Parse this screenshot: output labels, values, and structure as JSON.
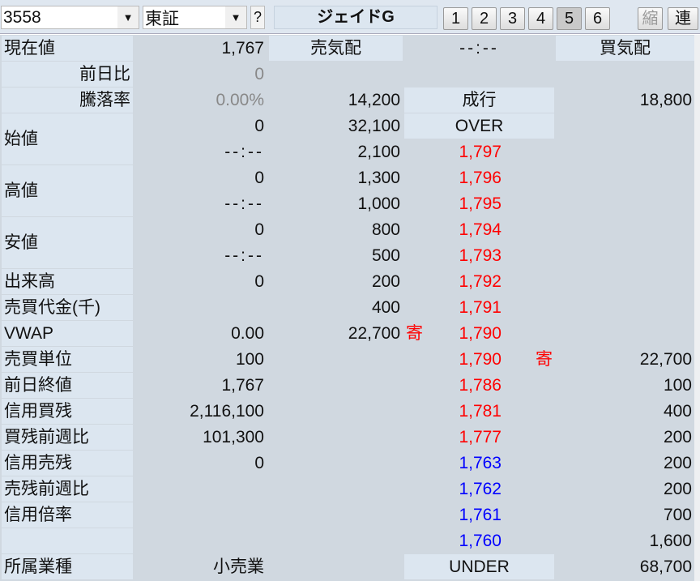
{
  "toolbar": {
    "code": "3558",
    "market": "東証",
    "help": "?",
    "stock_name": "ジェイドG",
    "number_buttons": [
      "1",
      "2",
      "3",
      "4",
      "5",
      "6"
    ],
    "selected_button": "5",
    "shrink": "縮",
    "link": "連"
  },
  "info_rows": [
    {
      "label": "現在値",
      "value": "1,767"
    },
    {
      "label": "前日比",
      "value": "0",
      "align": "right",
      "muted": true
    },
    {
      "label": "騰落率",
      "value": "0.00%",
      "align": "right",
      "muted": true
    },
    {
      "label": "始値",
      "value": "0",
      "sub": "--:--",
      "span": 2
    },
    {
      "label": "高値",
      "value": "0",
      "sub": "--:--",
      "span": 2
    },
    {
      "label": "安値",
      "value": "0",
      "sub": "--:--",
      "span": 2
    },
    {
      "label": "出来高",
      "value": "0"
    },
    {
      "label": "売買代金(千)",
      "value": ""
    },
    {
      "label": "VWAP",
      "value": "0.00"
    },
    {
      "label": "売買単位",
      "value": "100"
    },
    {
      "label": "前日終値",
      "value": "1,767"
    },
    {
      "label": "信用買残",
      "value": "2,116,100"
    },
    {
      "label": "買残前週比",
      "value": "101,300"
    },
    {
      "label": "信用売残",
      "value": "0"
    },
    {
      "label": "売残前週比",
      "value": ""
    },
    {
      "label": "信用倍率",
      "value": ""
    },
    {
      "label": "",
      "value": ""
    },
    {
      "label": "所属業種",
      "value": "小売業"
    }
  ],
  "board": {
    "header": {
      "sell": "売気配",
      "time": "--:--",
      "buy": "買気配"
    },
    "rows": [
      {
        "sell": "",
        "price": "",
        "buy": ""
      },
      {
        "sell": "14,200",
        "price": "成行",
        "buy": "18,800",
        "price_header": true
      },
      {
        "sell": "32,100",
        "price": "OVER",
        "buy": "",
        "price_header": true
      },
      {
        "sell": "2,100",
        "price": "1,797",
        "color": "red"
      },
      {
        "sell": "1,300",
        "price": "1,796",
        "color": "red"
      },
      {
        "sell": "1,000",
        "price": "1,795",
        "color": "red"
      },
      {
        "sell": "800",
        "price": "1,794",
        "color": "red"
      },
      {
        "sell": "500",
        "price": "1,793",
        "color": "red"
      },
      {
        "sell": "200",
        "price": "1,792",
        "color": "red"
      },
      {
        "sell": "400",
        "price": "1,791",
        "color": "red"
      },
      {
        "sell": "22,700",
        "price": "1,790",
        "color": "red",
        "sell_mark": "寄"
      },
      {
        "sell": "",
        "price": "1,790",
        "color": "red",
        "buy": "22,700",
        "buy_mark": "寄"
      },
      {
        "sell": "",
        "price": "1,786",
        "color": "red",
        "buy": "100"
      },
      {
        "sell": "",
        "price": "1,781",
        "color": "red",
        "buy": "400"
      },
      {
        "sell": "",
        "price": "1,777",
        "color": "red",
        "buy": "200"
      },
      {
        "sell": "",
        "price": "1,763",
        "color": "blue",
        "buy": "200"
      },
      {
        "sell": "",
        "price": "1,762",
        "color": "blue",
        "buy": "200"
      },
      {
        "sell": "",
        "price": "1,761",
        "color": "blue",
        "buy": "700"
      },
      {
        "sell": "",
        "price": "1,760",
        "color": "blue",
        "buy": "1,600"
      },
      {
        "sell": "",
        "price": "UNDER",
        "buy": "68,700",
        "price_header": true
      }
    ]
  },
  "colors": {
    "ask_price": "#ff0000",
    "bid_price": "#0000ff",
    "header_bg": "#dce6f0"
  }
}
